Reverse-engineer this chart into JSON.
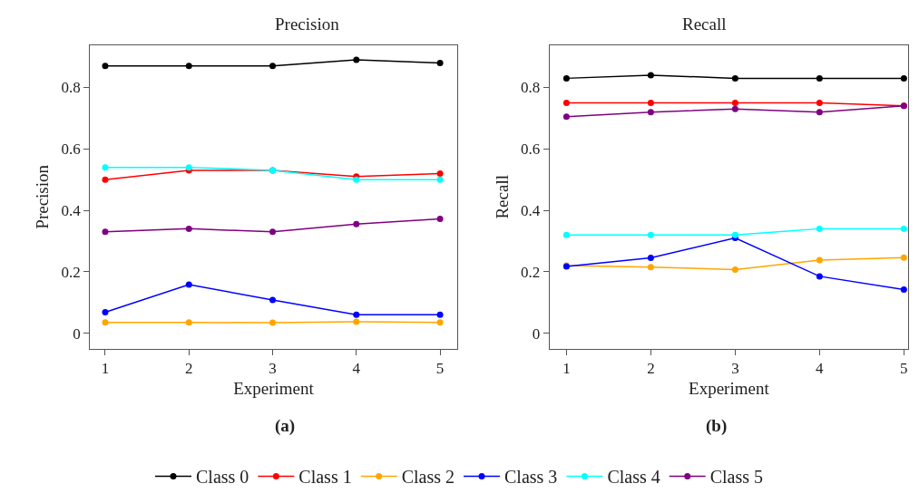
{
  "chart_data": [
    {
      "type": "line",
      "title": "Precision",
      "xlabel": "Experiment",
      "ylabel": "Precision",
      "annotations": [
        "(a)"
      ],
      "x": [
        1,
        2,
        3,
        4,
        5
      ],
      "xlim": [
        0.82,
        5.2
      ],
      "xticks": [
        1,
        2,
        3,
        4,
        5
      ],
      "ylim": [
        -0.05,
        0.937
      ],
      "yticks": [
        0,
        0.2,
        0.4,
        0.6,
        0.8
      ],
      "marker": "circle",
      "line_style": "solid",
      "legend": "bottom",
      "series": [
        {
          "name": "Class 0",
          "color": "#000000",
          "values": [
            0.87,
            0.87,
            0.87,
            0.89,
            0.88
          ]
        },
        {
          "name": "Class 1",
          "color": "#ff0000",
          "values": [
            0.5,
            0.53,
            0.53,
            0.51,
            0.52
          ]
        },
        {
          "name": "Class 2",
          "color": "#ffa500",
          "values": [
            0.035,
            0.035,
            0.034,
            0.037,
            0.035
          ]
        },
        {
          "name": "Class 3",
          "color": "#0000ff",
          "values": [
            0.068,
            0.158,
            0.108,
            0.06,
            0.06
          ]
        },
        {
          "name": "Class 4",
          "color": "#00ffff",
          "values": [
            0.54,
            0.54,
            0.53,
            0.5,
            0.5
          ]
        },
        {
          "name": "Class 5",
          "color": "#800080",
          "values": [
            0.33,
            0.34,
            0.33,
            0.355,
            0.372
          ]
        }
      ]
    },
    {
      "type": "line",
      "title": "Recall",
      "xlabel": "Experiment",
      "ylabel": "Recall",
      "annotations": [
        "(b)"
      ],
      "x": [
        1,
        2,
        3,
        4,
        5
      ],
      "xlim": [
        0.8,
        5.05
      ],
      "xticks": [
        1,
        2,
        3,
        4,
        5
      ],
      "ylim": [
        -0.05,
        0.937
      ],
      "yticks": [
        0,
        0.2,
        0.4,
        0.6,
        0.8
      ],
      "marker": "circle",
      "line_style": "solid",
      "series": [
        {
          "color": "#000000",
          "values": [
            0.83,
            0.84,
            0.83,
            0.83,
            0.83
          ]
        },
        {
          "color": "#ff0000",
          "values": [
            0.75,
            0.75,
            0.75,
            0.75,
            0.74
          ]
        },
        {
          "color": "#ffa500",
          "values": [
            0.22,
            0.215,
            0.207,
            0.238,
            0.246
          ]
        },
        {
          "color": "#0000ff",
          "values": [
            0.217,
            0.245,
            0.31,
            0.185,
            0.142
          ]
        },
        {
          "color": "#00ffff",
          "values": [
            0.32,
            0.32,
            0.32,
            0.34,
            0.34
          ]
        },
        {
          "color": "#800080",
          "values": [
            0.705,
            0.72,
            0.73,
            0.72,
            0.74
          ]
        }
      ]
    }
  ]
}
